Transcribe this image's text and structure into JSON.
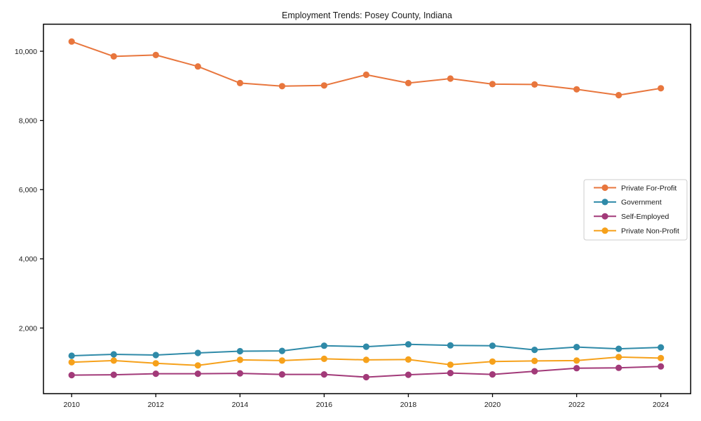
{
  "chart_data": {
    "type": "line",
    "title": "Employment Trends: Posey County, Indiana",
    "x": [
      2010,
      2011,
      2012,
      2013,
      2014,
      2015,
      2016,
      2017,
      2018,
      2019,
      2020,
      2021,
      2022,
      2023,
      2024
    ],
    "series": [
      {
        "name": "Private For-Profit",
        "color": "#e8763d",
        "values": [
          10280,
          9850,
          9890,
          9560,
          9080,
          8990,
          9010,
          9320,
          9080,
          9210,
          9050,
          9040,
          8900,
          8730,
          8930
        ]
      },
      {
        "name": "Government",
        "color": "#2f8aa8",
        "values": [
          1200,
          1240,
          1220,
          1280,
          1330,
          1340,
          1490,
          1460,
          1530,
          1500,
          1490,
          1370,
          1450,
          1400,
          1440
        ]
      },
      {
        "name": "Self-Employed",
        "color": "#a23a79",
        "values": [
          640,
          650,
          680,
          680,
          690,
          660,
          660,
          580,
          650,
          700,
          660,
          750,
          840,
          850,
          890
        ]
      },
      {
        "name": "Private Non-Profit",
        "color": "#f6a11b",
        "values": [
          1010,
          1060,
          980,
          920,
          1080,
          1060,
          1110,
          1080,
          1090,
          940,
          1030,
          1050,
          1060,
          1160,
          1130
        ]
      }
    ],
    "xticks": [
      2010,
      2012,
      2014,
      2016,
      2018,
      2020,
      2022,
      2024
    ],
    "yticks": [
      2000,
      4000,
      6000,
      8000,
      10000
    ],
    "ytick_labels": [
      "2,000",
      "4,000",
      "6,000",
      "8,000",
      "10,000"
    ],
    "xlim": [
      2009.33,
      2024.71
    ],
    "ylim": [
      104,
      10781
    ],
    "grid": false,
    "legend_position": "center-right",
    "frame_color": "#000000",
    "text_color": "#1a1a1a",
    "legend_border_color": "#cccccc",
    "background_color": "#ffffff"
  }
}
